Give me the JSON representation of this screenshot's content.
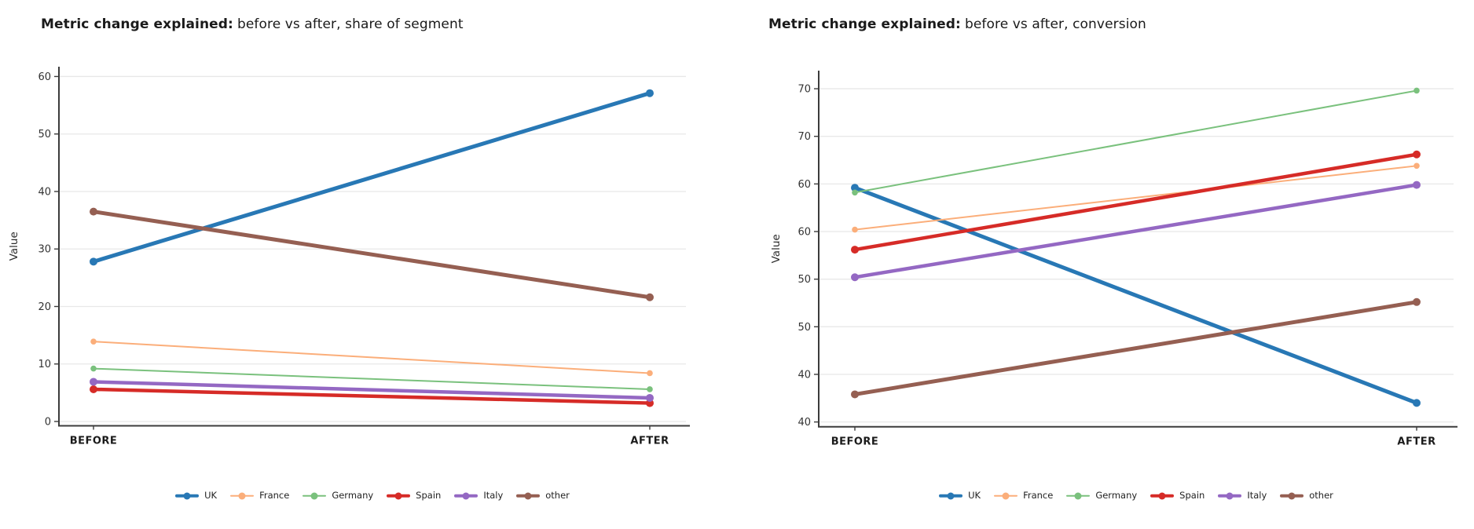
{
  "page": {
    "background": "#ffffff"
  },
  "chart_data": [
    {
      "type": "line",
      "title": "Metric change explained: before vs after, share of segment",
      "title_bold": "Metric change explained:",
      "title_rest": "before vs after, share of segment",
      "xlabel": "",
      "ylabel": "Value",
      "categories": [
        "BEFORE",
        "AFTER"
      ],
      "ylim": [
        0,
        60
      ],
      "grid": true,
      "legend_position": "bottom-center",
      "yticks": [
        {
          "value": 0,
          "label": "0"
        },
        {
          "value": 10,
          "label": "10"
        },
        {
          "value": 20,
          "label": "20"
        },
        {
          "value": 30,
          "label": "30"
        },
        {
          "value": 40,
          "label": "40"
        },
        {
          "value": 50,
          "label": "50"
        },
        {
          "value": 60,
          "label": "60"
        }
      ],
      "series": [
        {
          "name": "UK",
          "color": "#2878b5",
          "line_width": 5,
          "values": [
            27.8,
            57.1
          ]
        },
        {
          "name": "France",
          "color": "#fbae7a",
          "line_width": 2,
          "values": [
            13.9,
            8.4
          ]
        },
        {
          "name": "Germany",
          "color": "#7ac17d",
          "line_width": 2,
          "values": [
            9.2,
            5.6
          ]
        },
        {
          "name": "Spain",
          "color": "#d62b27",
          "line_width": 4.5,
          "values": [
            5.6,
            3.2
          ]
        },
        {
          "name": "Italy",
          "color": "#9468c3",
          "line_width": 4.5,
          "values": [
            6.9,
            4.1
          ]
        },
        {
          "name": "other",
          "color": "#955f52",
          "line_width": 5,
          "values": [
            36.5,
            21.6
          ]
        }
      ]
    },
    {
      "type": "line",
      "title": "Metric change explained: before vs after, conversion",
      "title_bold": "Metric change explained:",
      "title_rest": "before vs after, conversion",
      "xlabel": "",
      "ylabel": "Value",
      "categories": [
        "BEFORE",
        "AFTER"
      ],
      "ylim": [
        35,
        70
      ],
      "grid": true,
      "legend_position": "bottom-center",
      "yticks": [
        {
          "value": 35,
          "label": "40"
        },
        {
          "value": 40,
          "label": "40"
        },
        {
          "value": 45,
          "label": "50"
        },
        {
          "value": 50,
          "label": "50"
        },
        {
          "value": 55,
          "label": "60"
        },
        {
          "value": 60,
          "label": "60"
        },
        {
          "value": 65,
          "label": "70"
        },
        {
          "value": 70,
          "label": "70"
        }
      ],
      "series": [
        {
          "name": "UK",
          "color": "#2878b5",
          "line_width": 5,
          "values": [
            59.6,
            37.0
          ]
        },
        {
          "name": "France",
          "color": "#fbae7a",
          "line_width": 2,
          "values": [
            55.2,
            61.9
          ]
        },
        {
          "name": "Germany",
          "color": "#7ac17d",
          "line_width": 2,
          "values": [
            59.1,
            69.8
          ]
        },
        {
          "name": "Spain",
          "color": "#d62b27",
          "line_width": 4.5,
          "values": [
            53.1,
            63.1
          ]
        },
        {
          "name": "Italy",
          "color": "#9468c3",
          "line_width": 4.5,
          "values": [
            50.2,
            59.9
          ]
        },
        {
          "name": "other",
          "color": "#955f52",
          "line_width": 5,
          "values": [
            37.9,
            47.6
          ]
        }
      ]
    }
  ]
}
